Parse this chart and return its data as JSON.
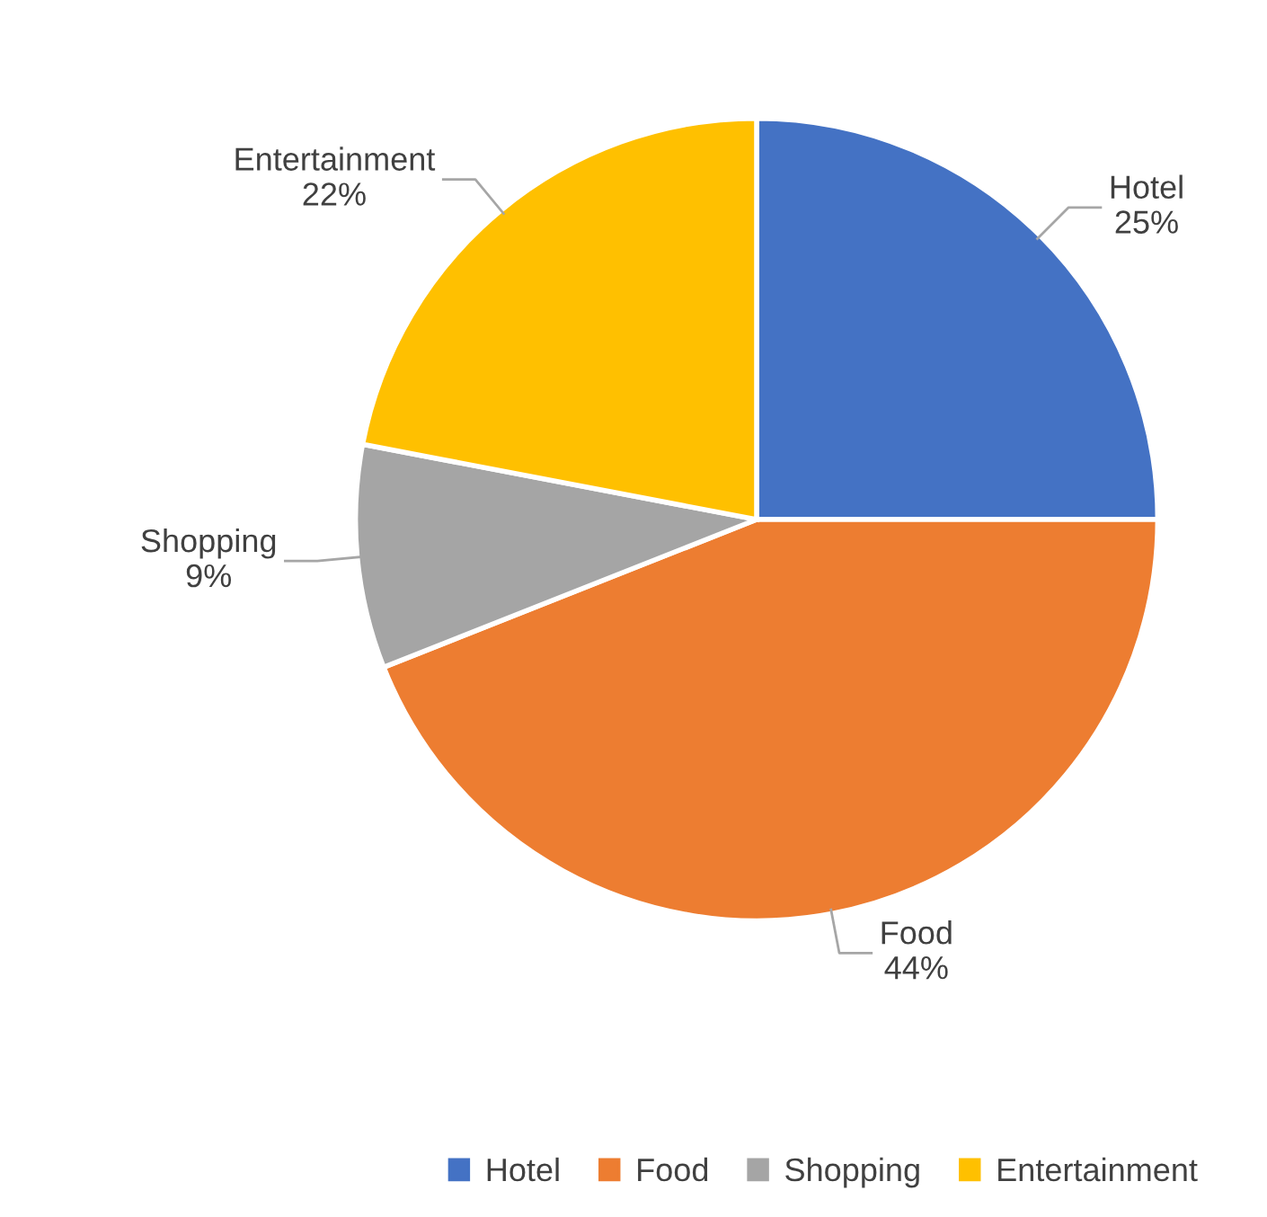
{
  "chart_data": {
    "type": "pie",
    "categories": [
      "Hotel",
      "Food",
      "Shopping",
      "Entertainment"
    ],
    "values": [
      25,
      44,
      9,
      22
    ],
    "colors": [
      "#4472c4",
      "#ed7d31",
      "#a5a5a5",
      "#ffc000"
    ],
    "value_labels": [
      "25%",
      "44%",
      "9%",
      "22%"
    ],
    "legend": "bottom"
  }
}
